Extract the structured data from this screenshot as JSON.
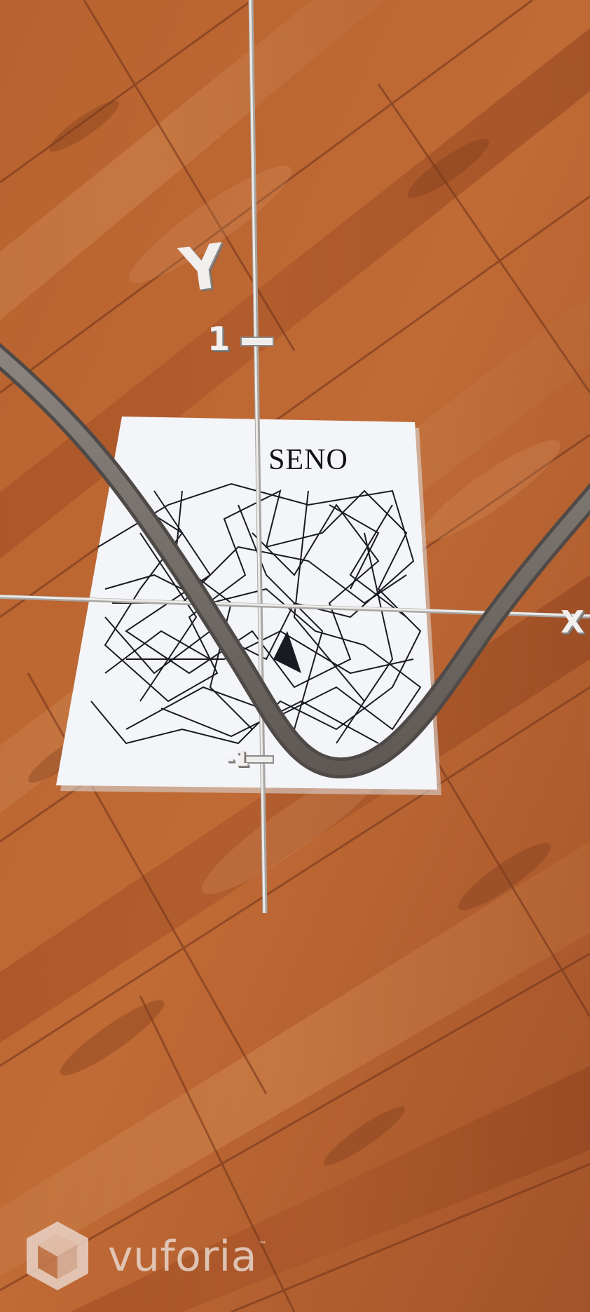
{
  "app": {
    "brand": "vuforia",
    "trademark": "™",
    "brand_icon": "vuforia-cube-logo-icon"
  },
  "marker": {
    "title": "SENO"
  },
  "axes": {
    "y_label": "Y",
    "x_label": "X",
    "tick_positive": "1",
    "tick_negative": "-1"
  },
  "curve": {
    "function": "sine",
    "color": "#7a7470"
  },
  "colors": {
    "wood_light": "#c7773f",
    "wood_dark": "#8b4020",
    "axis": "#e9e7e4",
    "paper": "#f3f5f8",
    "curve": "#7a7470"
  }
}
